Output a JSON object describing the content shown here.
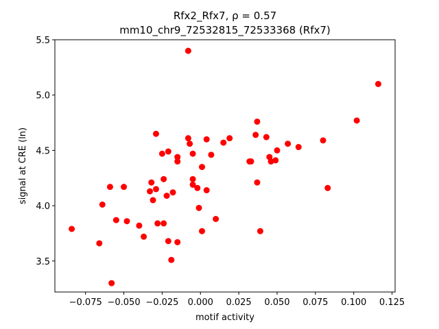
{
  "chart_data": {
    "type": "scatter",
    "title": "Rfx2_Rfx7, ρ = 0.57",
    "subtitle": "mm10_chr9_72532815_72533368 (Rfx7)",
    "xlabel": "motif activity",
    "ylabel": "signal at CRE (ln)",
    "xlim": [
      -0.095,
      0.127
    ],
    "ylim": [
      3.22,
      5.5
    ],
    "xticks": [
      -0.075,
      -0.05,
      -0.025,
      0.0,
      0.025,
      0.05,
      0.075,
      0.1,
      0.125
    ],
    "xtick_labels": [
      "−0.075",
      "−0.050",
      "−0.025",
      "0.000",
      "0.025",
      "0.050",
      "0.075",
      "0.100",
      "0.125"
    ],
    "yticks": [
      3.5,
      4.0,
      4.5,
      5.0,
      5.5
    ],
    "ytick_labels": [
      "3.5",
      "4.0",
      "4.5",
      "5.0",
      "5.5"
    ],
    "grid": false,
    "marker_color": "#ff0000",
    "points": [
      {
        "x": -0.084,
        "y": 3.79
      },
      {
        "x": -0.066,
        "y": 3.66
      },
      {
        "x": -0.064,
        "y": 4.01
      },
      {
        "x": -0.059,
        "y": 4.17
      },
      {
        "x": -0.058,
        "y": 3.3
      },
      {
        "x": -0.055,
        "y": 3.87
      },
      {
        "x": -0.05,
        "y": 4.17
      },
      {
        "x": -0.048,
        "y": 3.86
      },
      {
        "x": -0.04,
        "y": 3.82
      },
      {
        "x": -0.037,
        "y": 3.72
      },
      {
        "x": -0.033,
        "y": 4.13
      },
      {
        "x": -0.032,
        "y": 4.21
      },
      {
        "x": -0.031,
        "y": 4.05
      },
      {
        "x": -0.029,
        "y": 4.65
      },
      {
        "x": -0.029,
        "y": 4.15
      },
      {
        "x": -0.028,
        "y": 3.84
      },
      {
        "x": -0.025,
        "y": 4.47
      },
      {
        "x": -0.024,
        "y": 4.24
      },
      {
        "x": -0.024,
        "y": 3.84
      },
      {
        "x": -0.022,
        "y": 4.09
      },
      {
        "x": -0.021,
        "y": 4.49
      },
      {
        "x": -0.021,
        "y": 3.68
      },
      {
        "x": -0.019,
        "y": 3.51
      },
      {
        "x": -0.018,
        "y": 4.12
      },
      {
        "x": -0.015,
        "y": 4.44
      },
      {
        "x": -0.015,
        "y": 4.4
      },
      {
        "x": -0.015,
        "y": 3.67
      },
      {
        "x": -0.008,
        "y": 5.4
      },
      {
        "x": -0.008,
        "y": 4.61
      },
      {
        "x": -0.007,
        "y": 4.56
      },
      {
        "x": -0.005,
        "y": 4.47
      },
      {
        "x": -0.005,
        "y": 4.24
      },
      {
        "x": -0.005,
        "y": 4.19
      },
      {
        "x": -0.002,
        "y": 4.16
      },
      {
        "x": -0.001,
        "y": 3.98
      },
      {
        "x": 0.001,
        "y": 4.35
      },
      {
        "x": 0.001,
        "y": 3.77
      },
      {
        "x": 0.004,
        "y": 4.6
      },
      {
        "x": 0.004,
        "y": 4.14
      },
      {
        "x": 0.007,
        "y": 4.46
      },
      {
        "x": 0.01,
        "y": 3.88
      },
      {
        "x": 0.015,
        "y": 4.57
      },
      {
        "x": 0.019,
        "y": 4.61
      },
      {
        "x": 0.032,
        "y": 4.4
      },
      {
        "x": 0.033,
        "y": 4.4
      },
      {
        "x": 0.036,
        "y": 4.64
      },
      {
        "x": 0.037,
        "y": 4.76
      },
      {
        "x": 0.037,
        "y": 4.21
      },
      {
        "x": 0.039,
        "y": 3.77
      },
      {
        "x": 0.043,
        "y": 4.62
      },
      {
        "x": 0.045,
        "y": 4.44
      },
      {
        "x": 0.046,
        "y": 4.4
      },
      {
        "x": 0.049,
        "y": 4.41
      },
      {
        "x": 0.05,
        "y": 4.5
      },
      {
        "x": 0.057,
        "y": 4.56
      },
      {
        "x": 0.064,
        "y": 4.53
      },
      {
        "x": 0.08,
        "y": 4.59
      },
      {
        "x": 0.083,
        "y": 4.16
      },
      {
        "x": 0.102,
        "y": 4.77
      },
      {
        "x": 0.116,
        "y": 5.1
      }
    ]
  }
}
